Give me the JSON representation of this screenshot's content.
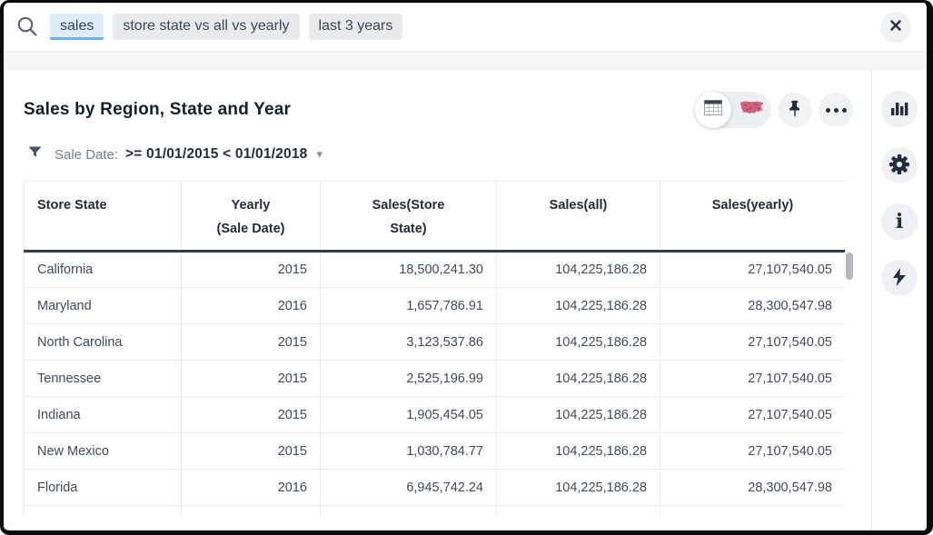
{
  "search": {
    "tokens": [
      {
        "label": "sales",
        "active": true
      },
      {
        "label": "store state vs all vs yearly",
        "active": false
      },
      {
        "label": "last 3 years",
        "active": false
      }
    ]
  },
  "answer": {
    "title": "Sales by Region, State and Year",
    "filter": {
      "label": "Sale Date:",
      "value": ">= 01/01/2015 < 01/01/2018"
    }
  },
  "icons": {
    "search": "magnifying-glass",
    "close": "x",
    "view_table": "table-grid",
    "view_map": "us-map",
    "pin": "pushpin",
    "more": "ellipsis",
    "filter": "funnel",
    "caret": "▾",
    "info_glyph": "i",
    "sidebar": [
      "bar-chart",
      "gear",
      "info",
      "lightning-bolt"
    ]
  },
  "table": {
    "columns": [
      "Store State",
      "Yearly\n(Sale Date)",
      "Sales(Store\nState)",
      "Sales(all)",
      "Sales(yearly)"
    ],
    "rows": [
      [
        "California",
        "2015",
        "18,500,241.30",
        "104,225,186.28",
        "27,107,540.05"
      ],
      [
        "Maryland",
        "2016",
        "1,657,786.91",
        "104,225,186.28",
        "28,300,547.98"
      ],
      [
        "North Carolina",
        "2015",
        "3,123,537.86",
        "104,225,186.28",
        "27,107,540.05"
      ],
      [
        "Tennessee",
        "2015",
        "2,525,196.99",
        "104,225,186.28",
        "27,107,540.05"
      ],
      [
        "Indiana",
        "2015",
        "1,905,454.05",
        "104,225,186.28",
        "27,107,540.05"
      ],
      [
        "New Mexico",
        "2015",
        "1,030,784.77",
        "104,225,186.28",
        "27,107,540.05"
      ],
      [
        "Florida",
        "2016",
        "6,945,742.24",
        "104,225,186.28",
        "28,300,547.98"
      ]
    ]
  },
  "colors": {
    "accent_blue": "#6cb4ef",
    "token_active_bg": "#ddeefa",
    "token_bg": "#e9eaeb",
    "dark_glyph": "#232d3e",
    "map_red": "#c0506b",
    "header_rule": "#333c4b",
    "grid_line": "#eaecef"
  }
}
